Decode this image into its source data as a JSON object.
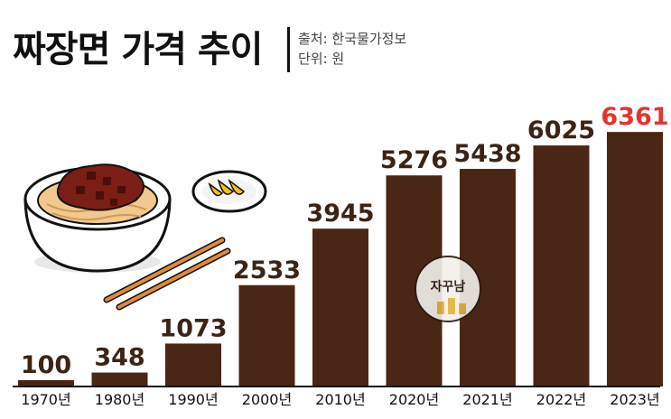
{
  "chart_data": {
    "type": "bar",
    "title": "짜장면 가격 추이",
    "source": "출처: 한국물가정보",
    "unit": "단위: 원",
    "categories": [
      "1970년",
      "1980년",
      "1990년",
      "2000년",
      "2010년",
      "2020년",
      "2021년",
      "2022년",
      "2023년"
    ],
    "values": [
      100,
      348,
      1073,
      2533,
      3945,
      5276,
      5438,
      6025,
      6361
    ],
    "ylim": [
      0,
      6500
    ],
    "grid": false,
    "legend": "none",
    "colors": {
      "bar": "#4a2616",
      "label": "#3b2416",
      "highlight_label": "#e3342f"
    }
  },
  "watermark": {
    "text": "자꾸남"
  }
}
